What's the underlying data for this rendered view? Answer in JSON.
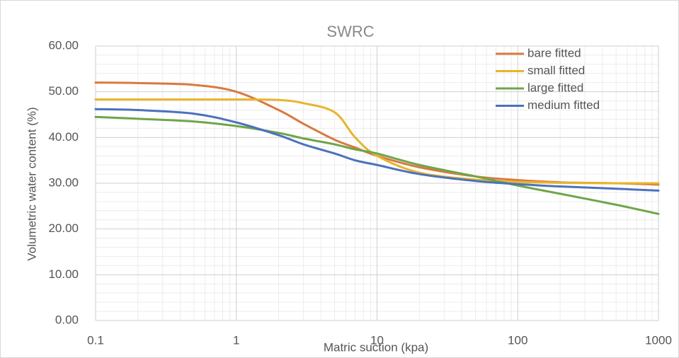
{
  "chart_data": {
    "type": "line",
    "title": "SWRC",
    "x_label": "Matric suction (kpa)",
    "y_label": "Volumetric water content (%)",
    "x": [
      0.1,
      0.2,
      0.5,
      1,
      2,
      3,
      5,
      7,
      10,
      20,
      50,
      100,
      200,
      500,
      1000
    ],
    "series": [
      {
        "name": "bare fitted",
        "color": "#d9793e",
        "values": [
          52,
          51.9,
          51.5,
          50,
          46,
          43,
          39.5,
          37.8,
          36,
          33.5,
          31.5,
          30.7,
          30.2,
          30,
          29.7
        ]
      },
      {
        "name": "small fitted",
        "color": "#e8b42a",
        "values": [
          48.3,
          48.3,
          48.3,
          48.3,
          48.2,
          47.5,
          45.5,
          40,
          36,
          32.3,
          30.8,
          30.3,
          30.1,
          30,
          30
        ]
      },
      {
        "name": "large fitted",
        "color": "#6fa54a",
        "values": [
          44.5,
          44.1,
          43.5,
          42.5,
          41,
          39.8,
          38.5,
          37.4,
          36.5,
          34,
          31.5,
          29.5,
          27.7,
          25.3,
          23.3
        ]
      },
      {
        "name": "medium fitted",
        "color": "#4a72bc",
        "values": [
          46.2,
          46,
          45.2,
          43.3,
          40.5,
          38.5,
          36.5,
          35,
          34,
          32,
          30.5,
          29.8,
          29.3,
          28.8,
          28.4
        ]
      }
    ],
    "xlim": [
      0.1,
      1000
    ],
    "xticks": [
      0.1,
      1,
      10,
      100,
      1000
    ],
    "x_log": true,
    "ylim": [
      0,
      60
    ],
    "yticks": [
      {
        "value": 0,
        "label": "0.00"
      },
      {
        "value": 10,
        "label": "10.00"
      },
      {
        "value": 20,
        "label": "20.00"
      },
      {
        "value": 30,
        "label": "30.00"
      },
      {
        "value": 40,
        "label": "40.00"
      },
      {
        "value": 50,
        "label": "50.00"
      },
      {
        "value": 60,
        "label": "60.00"
      }
    ],
    "grid": true,
    "minor_grid": true,
    "legend": "top-right"
  }
}
